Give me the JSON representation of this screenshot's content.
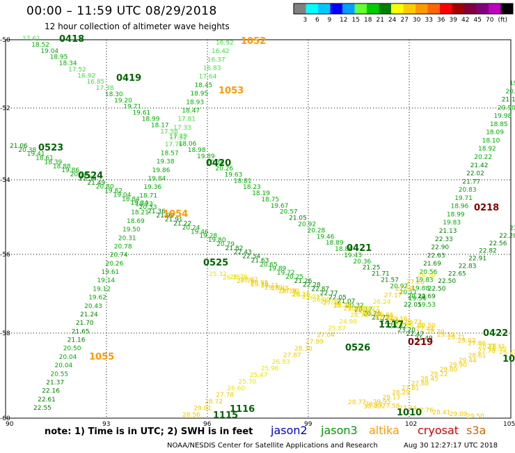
{
  "title": "00:00 – 11:59 UTC 08/29/2018",
  "subtitle": "12 hour collection of altimeter wave heights",
  "legend": {
    "colors": [
      "#808080",
      "#00ffff",
      "#00c8ff",
      "#0000ff",
      "#00a0ff",
      "#66ff33",
      "#00cc00",
      "#008000",
      "#ffff00",
      "#ffcc00",
      "#ff9900",
      "#ff6600",
      "#ff0000",
      "#a00000",
      "#800040",
      "#800080",
      "#c000c0",
      "#000000"
    ],
    "labels": [
      "3",
      "6",
      "9",
      "12",
      "15",
      "18",
      "21",
      "24",
      "27",
      "30",
      "33",
      "36",
      "39",
      "42",
      "45",
      "70",
      "(ft)"
    ]
  },
  "axes": {
    "x_ticks": [
      "90",
      "93",
      "96",
      "99",
      "102",
      "105"
    ],
    "y_ticks": [
      "-50",
      "-52",
      "-54",
      "-56",
      "-58",
      "-60"
    ]
  },
  "passes": [
    {
      "id": "0418",
      "color": "#006400"
    },
    {
      "id": "0419",
      "color": "#006400"
    },
    {
      "id": "0420",
      "color": "#006400"
    },
    {
      "id": "0421",
      "color": "#006400"
    },
    {
      "id": "0422",
      "color": "#006400"
    },
    {
      "id": "0523",
      "color": "#006400"
    },
    {
      "id": "0524",
      "color": "#006400"
    },
    {
      "id": "0525",
      "color": "#006400"
    },
    {
      "id": "0526",
      "color": "#006400"
    },
    {
      "id": "1052",
      "color": "#ff9900"
    },
    {
      "id": "1053",
      "color": "#ff9900"
    },
    {
      "id": "1054",
      "color": "#ff9900"
    },
    {
      "id": "1055",
      "color": "#ff9900"
    },
    {
      "id": "0218",
      "color": "#800000"
    },
    {
      "id": "0219",
      "color": "#800000"
    },
    {
      "id": "1116",
      "color": "#006400"
    },
    {
      "id": "1115",
      "color": "#006400"
    },
    {
      "id": "1117",
      "color": "#006400"
    },
    {
      "id": "1010",
      "color": "#006400"
    },
    {
      "id": "10",
      "color": "#006400"
    }
  ],
  "note": "note:  1) Time is in UTC;  2) SWH is in feet",
  "satellites": [
    {
      "name": "jason2",
      "color": "#0000cc"
    },
    {
      "name": "jason3",
      "color": "#009900"
    },
    {
      "name": "altika",
      "color": "#ff9900"
    },
    {
      "name": "cryosat",
      "color": "#cc0000"
    },
    {
      "name": "s3a",
      "color": "#cc6600"
    }
  ],
  "footer": "NOAA/NESDIS Center for Satellite Applications and Research",
  "stamp": "Aug 30 12:27:17 UTC 2018"
}
